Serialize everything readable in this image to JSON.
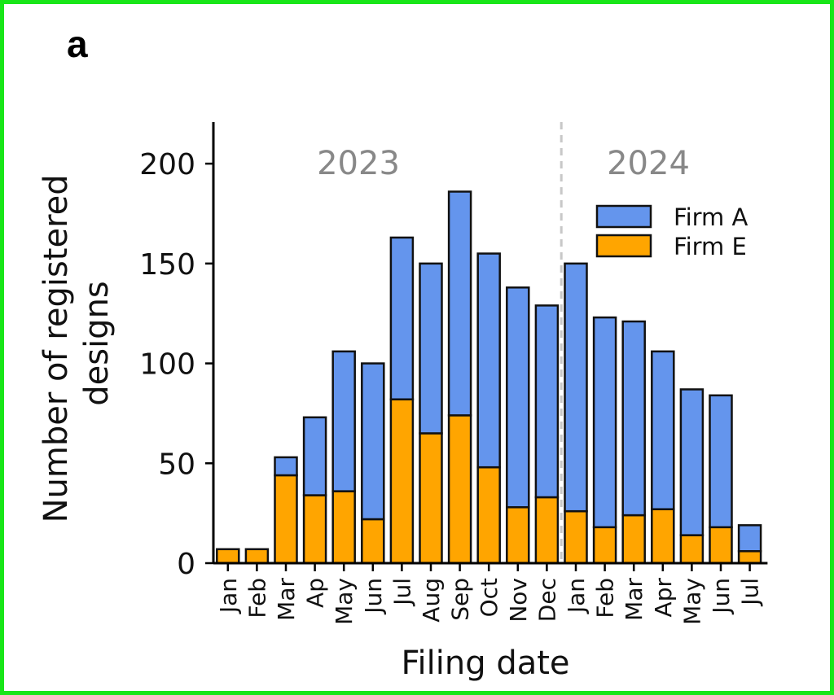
{
  "panel_label": "a",
  "colors": {
    "frame": "#19e619",
    "firm_a": "#6495ed",
    "firm_e": "#ffa500",
    "bar_stroke": "#111111",
    "year_label": "#888888",
    "divider": "#c8c8c8"
  },
  "chart_data": {
    "type": "bar",
    "stacked": true,
    "xlabel": "Filing date",
    "ylabel": "Number of registered designs",
    "ylabel_lines": [
      "Number of registered",
      "designs"
    ],
    "ylim": [
      0,
      220
    ],
    "yticks": [
      0,
      50,
      100,
      150,
      200
    ],
    "categories": [
      "Jan",
      "Feb",
      "Mar",
      "Ap",
      "May",
      "Jun",
      "Jul",
      "Aug",
      "Sep",
      "Oct",
      "Nov",
      "Dec",
      "Jan",
      "Feb",
      "Mar",
      "Apr",
      "May",
      "Jun",
      "Jul"
    ],
    "year_labels": [
      {
        "text": "2023",
        "center_index": 4.5
      },
      {
        "text": "2024",
        "center_index": 14.5
      }
    ],
    "year_divider_after_index": 11,
    "legend_position": "top-right",
    "series": [
      {
        "name": "Firm E",
        "color": "#ffa500",
        "values": [
          7,
          7,
          44,
          34,
          36,
          22,
          82,
          65,
          74,
          48,
          28,
          33,
          26,
          18,
          24,
          27,
          14,
          18,
          6
        ]
      },
      {
        "name": "Firm A",
        "color": "#6495ed",
        "values": [
          0,
          0,
          9,
          39,
          70,
          78,
          81,
          85,
          112,
          107,
          110,
          96,
          124,
          105,
          97,
          79,
          73,
          66,
          13
        ]
      }
    ],
    "legend": [
      "Firm A",
      "Firm E"
    ],
    "grid": false
  }
}
